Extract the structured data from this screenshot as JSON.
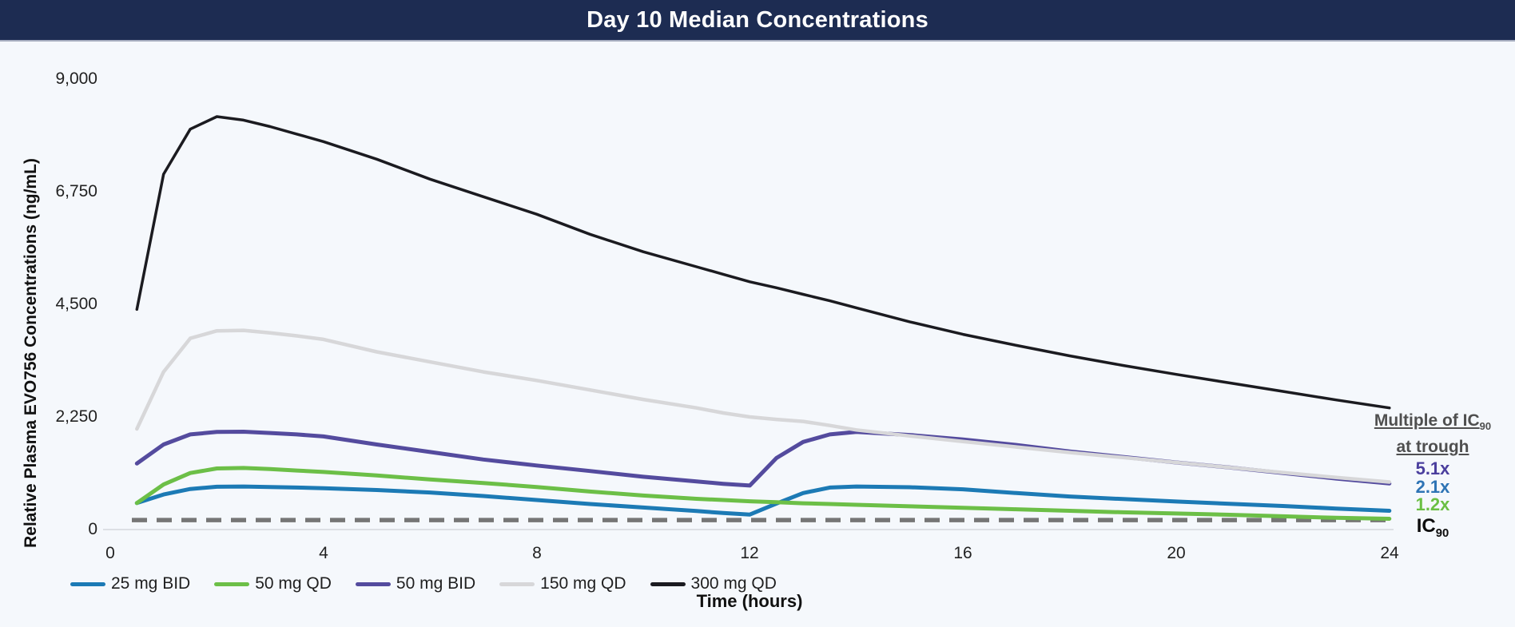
{
  "header": {
    "title": "Day 10 Median Concentrations"
  },
  "y_axis": {
    "title": "Relative Plasma EVO756 Concentrations (ng/mL)",
    "tick_labels": [
      "9,000",
      "6,750",
      "4,500",
      "2,250",
      "0"
    ]
  },
  "x_axis": {
    "title": "Time (hours)",
    "tick_labels": [
      "0",
      "4",
      "8",
      "12",
      "16",
      "20",
      "24"
    ]
  },
  "annotation": {
    "heading_line1_prefix": "Multiple of IC",
    "heading_line1_sub": "90",
    "heading_line2": "at trough",
    "values": [
      {
        "label": "5.1x",
        "color": "#4b3f9e"
      },
      {
        "label": "2.1x",
        "color": "#2e74b5"
      },
      {
        "label": "1.2x",
        "color": "#6abf43"
      }
    ],
    "ic90_prefix": "IC",
    "ic90_sub": "90"
  },
  "colors": {
    "header_bg": "#1d2c52",
    "background": "#f5f8fc",
    "axis_line": "#dcdfe4",
    "reference_dash": "#767676"
  },
  "chart_data": {
    "type": "line",
    "title": "Day 10 Median Concentrations",
    "xlabel": "Time (hours)",
    "ylabel": "Relative Plasma EVO756 Concentrations (ng/mL)",
    "xlim": [
      0,
      24
    ],
    "ylim": [
      0,
      9000
    ],
    "x_ticks": [
      0,
      4,
      8,
      12,
      16,
      20,
      24
    ],
    "y_ticks": [
      9000,
      6750,
      4500,
      2250,
      0
    ],
    "grid": false,
    "legend_position": "bottom",
    "x": [
      0.5,
      1,
      1.5,
      2,
      2.5,
      3,
      3.5,
      4,
      5,
      6,
      7,
      8,
      9,
      10,
      11,
      11.5,
      12,
      12.5,
      13,
      13.5,
      14,
      15,
      16,
      17,
      18,
      19,
      20,
      21,
      22,
      23,
      24
    ],
    "series": [
      {
        "name": "25 mg BID",
        "color": "#1c7ab5",
        "width": 5,
        "values": [
          530,
          700,
          810,
          855,
          860,
          850,
          840,
          825,
          790,
          740,
          670,
          590,
          510,
          440,
          370,
          330,
          300,
          520,
          730,
          840,
          860,
          845,
          805,
          730,
          660,
          610,
          560,
          515,
          470,
          420,
          375
        ]
      },
      {
        "name": "50 mg QD",
        "color": "#6cbf47",
        "width": 5,
        "values": [
          530,
          900,
          1130,
          1220,
          1230,
          1210,
          1180,
          1150,
          1080,
          1000,
          930,
          850,
          760,
          680,
          615,
          590,
          565,
          545,
          525,
          510,
          495,
          465,
          435,
          405,
          375,
          345,
          320,
          295,
          265,
          235,
          215
        ]
      },
      {
        "name": "50 mg BID",
        "color": "#544b9e",
        "width": 5,
        "values": [
          1320,
          1700,
          1900,
          1950,
          1955,
          1930,
          1900,
          1860,
          1700,
          1550,
          1400,
          1280,
          1170,
          1055,
          960,
          915,
          880,
          1430,
          1750,
          1900,
          1950,
          1890,
          1800,
          1690,
          1560,
          1450,
          1340,
          1240,
          1130,
          1020,
          920
        ]
      },
      {
        "name": "150 mg QD",
        "color": "#d7d7d9",
        "width": 4.5,
        "values": [
          2010,
          3150,
          3820,
          3970,
          3980,
          3930,
          3870,
          3800,
          3550,
          3350,
          3150,
          2980,
          2790,
          2600,
          2430,
          2330,
          2250,
          2200,
          2160,
          2080,
          1990,
          1870,
          1760,
          1650,
          1540,
          1440,
          1340,
          1240,
          1140,
          1040,
          950
        ]
      },
      {
        "name": "300 mg QD",
        "color": "#1b1b20",
        "width": 3.5,
        "values": [
          4400,
          7100,
          8000,
          8250,
          8180,
          8050,
          7900,
          7750,
          7400,
          7000,
          6650,
          6300,
          5900,
          5550,
          5250,
          5100,
          4950,
          4830,
          4700,
          4570,
          4430,
          4150,
          3900,
          3680,
          3470,
          3280,
          3100,
          2930,
          2760,
          2590,
          2430
        ]
      }
    ],
    "reference_line": {
      "label": "IC90",
      "value": 190,
      "style": "dashed",
      "color": "#767676"
    }
  }
}
